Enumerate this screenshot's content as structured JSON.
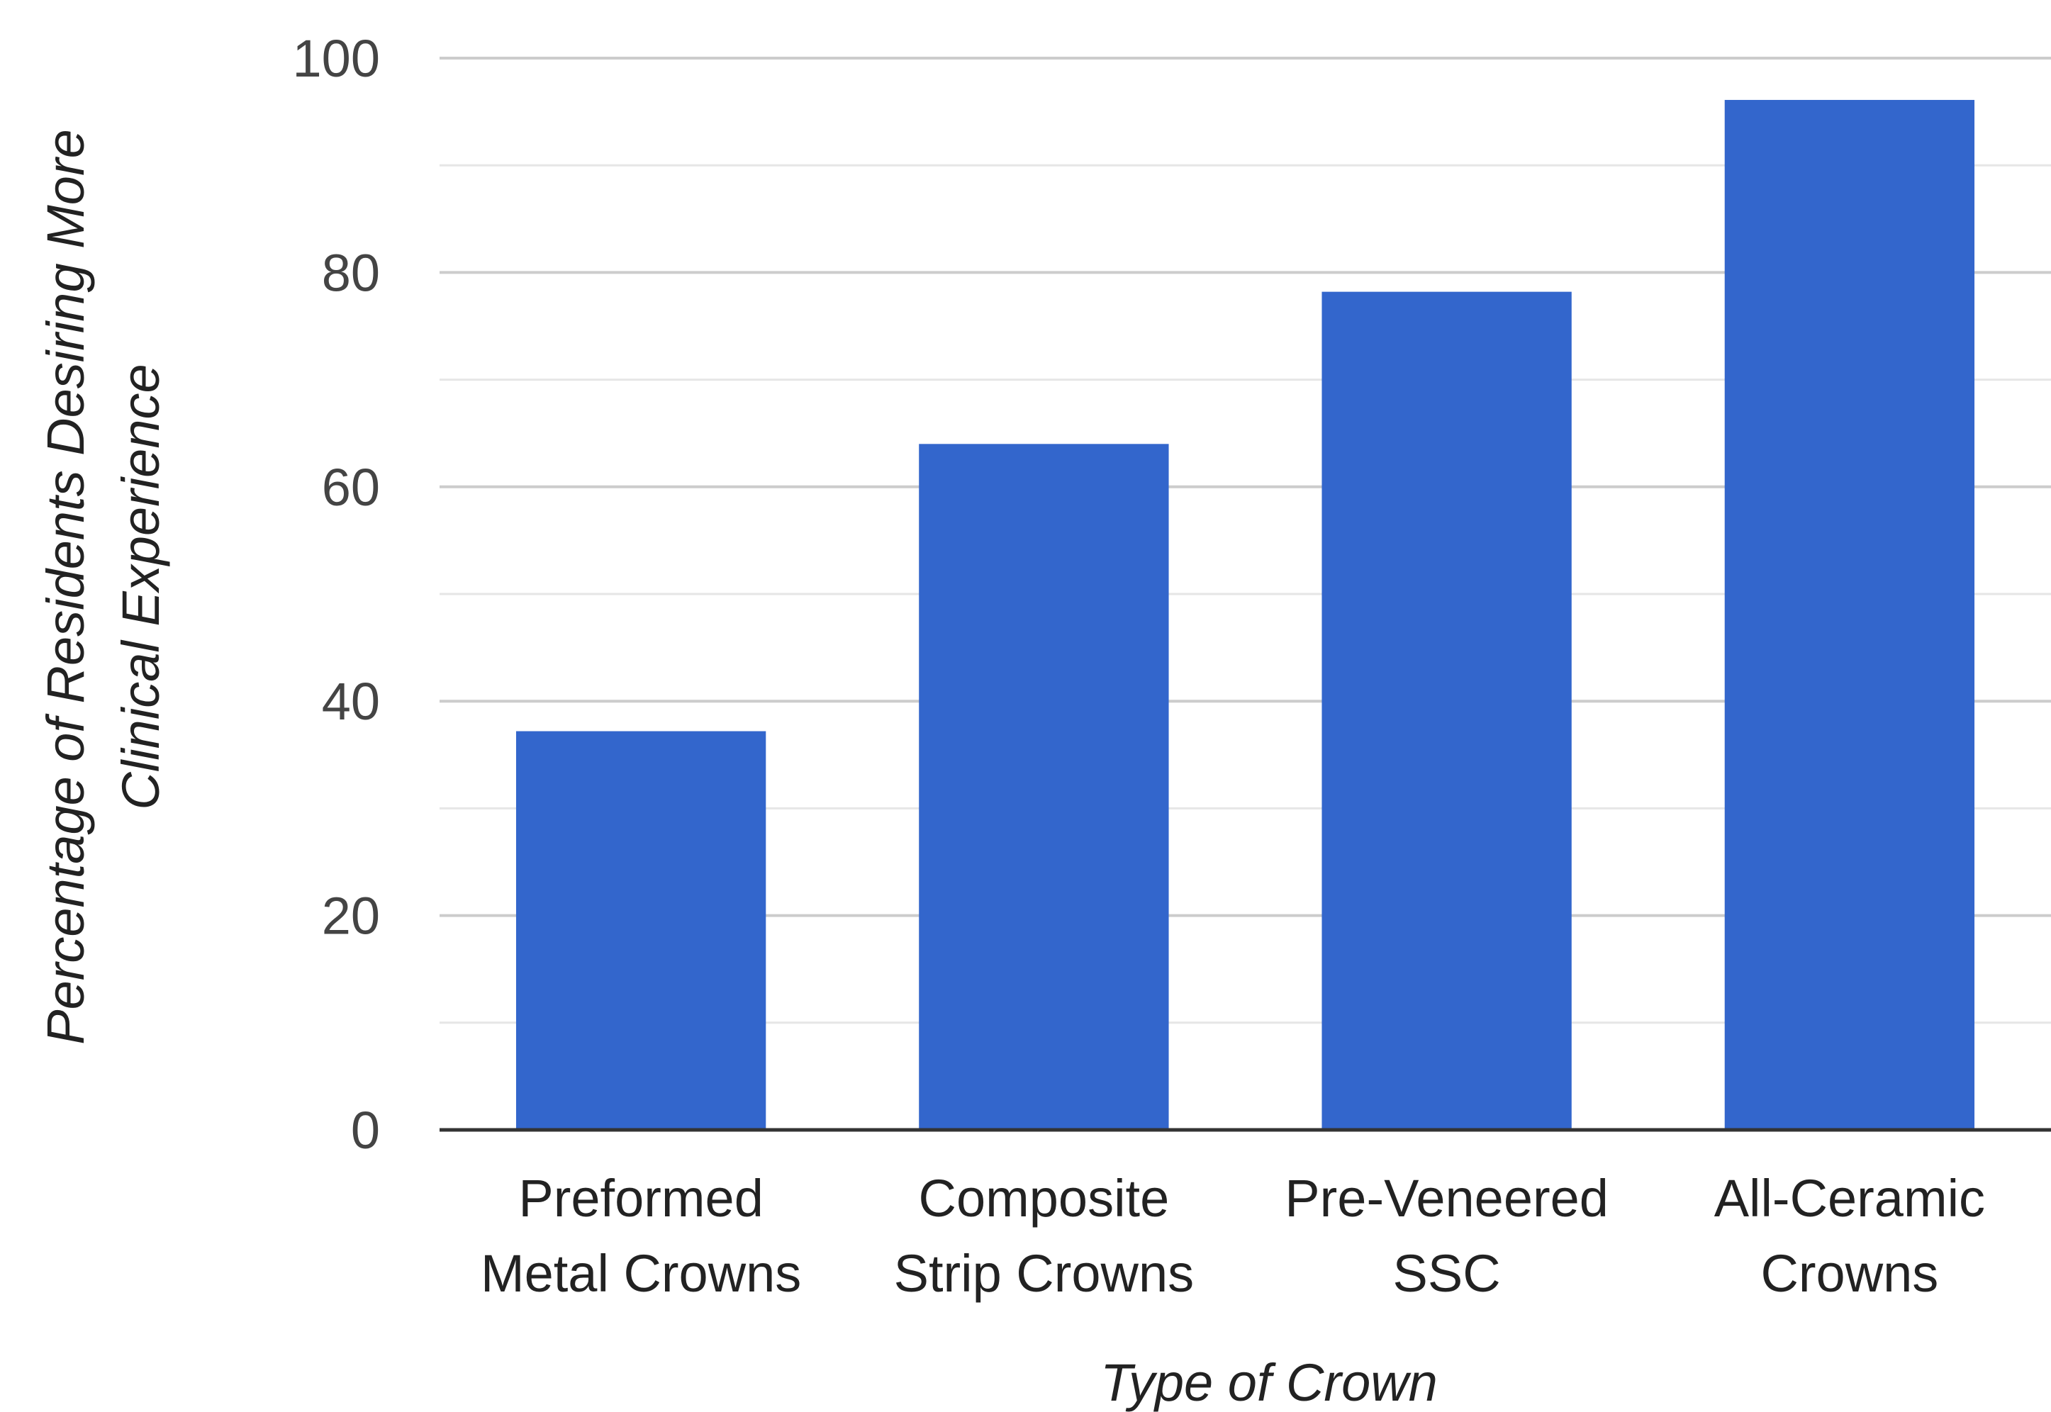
{
  "chart_data": {
    "type": "bar",
    "title": "",
    "xlabel": "Type of Crown",
    "ylabel_lines": [
      "Percentage of Residents Desiring More",
      "Clinical Experience"
    ],
    "ylim": [
      0,
      100
    ],
    "yticks": [
      0,
      20,
      40,
      60,
      80,
      100
    ],
    "minor_grid_step": 10,
    "grid": true,
    "legend": "none",
    "categories": [
      [
        "Preformed",
        "Metal Crowns"
      ],
      [
        "Composite",
        "Strip Crowns"
      ],
      [
        "Pre-Veneered",
        "SSC"
      ],
      [
        "All-Ceramic",
        "Crowns"
      ]
    ],
    "values": [
      37.2,
      64.0,
      78.2,
      96.1
    ],
    "bar_color": "#3366cc",
    "grid_color": "#cccccc",
    "minor_grid_color": "#e6e6e6",
    "baseline_color": "#333333"
  }
}
